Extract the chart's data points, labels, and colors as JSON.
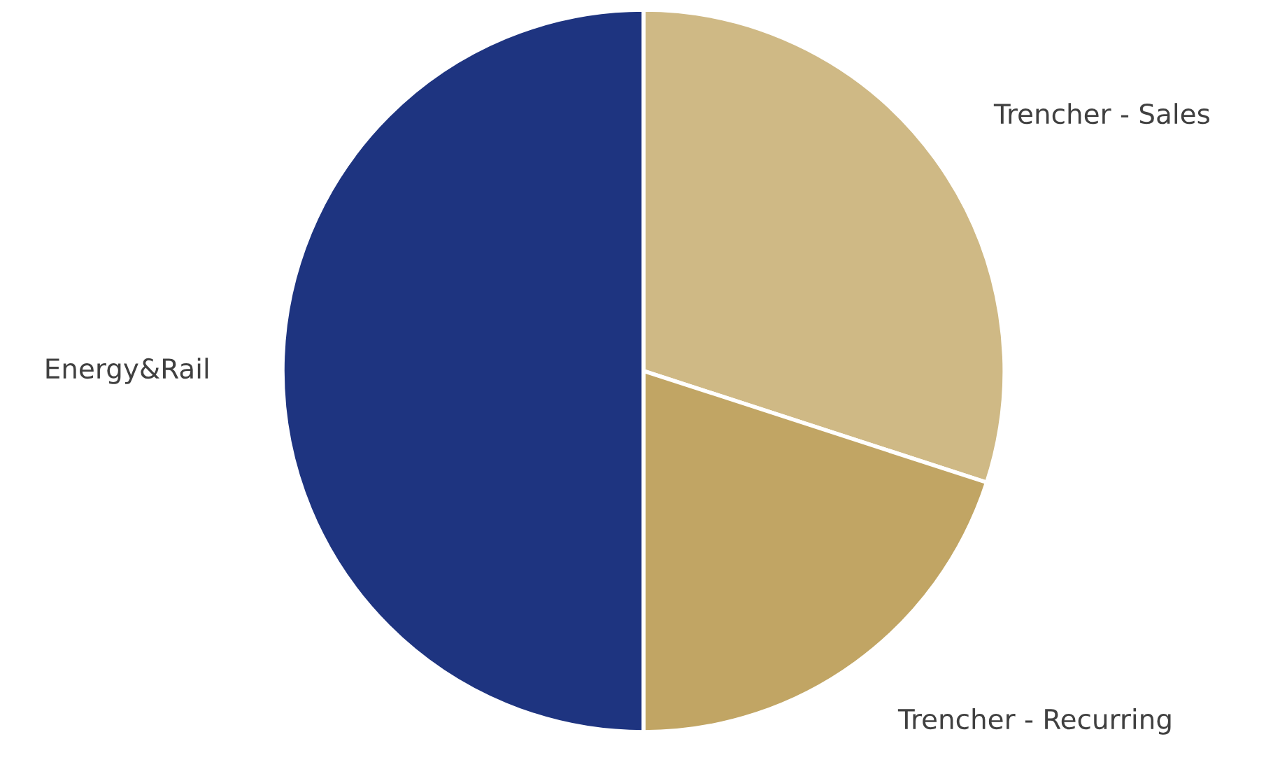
{
  "chart_data": {
    "type": "pie",
    "categories": [
      "Trencher - Sales",
      "Trencher - Recurring",
      "Energy&Rail"
    ],
    "values": [
      30,
      20,
      50
    ],
    "colors": [
      "#cfb985",
      "#c1a564",
      "#1e3480"
    ]
  }
}
